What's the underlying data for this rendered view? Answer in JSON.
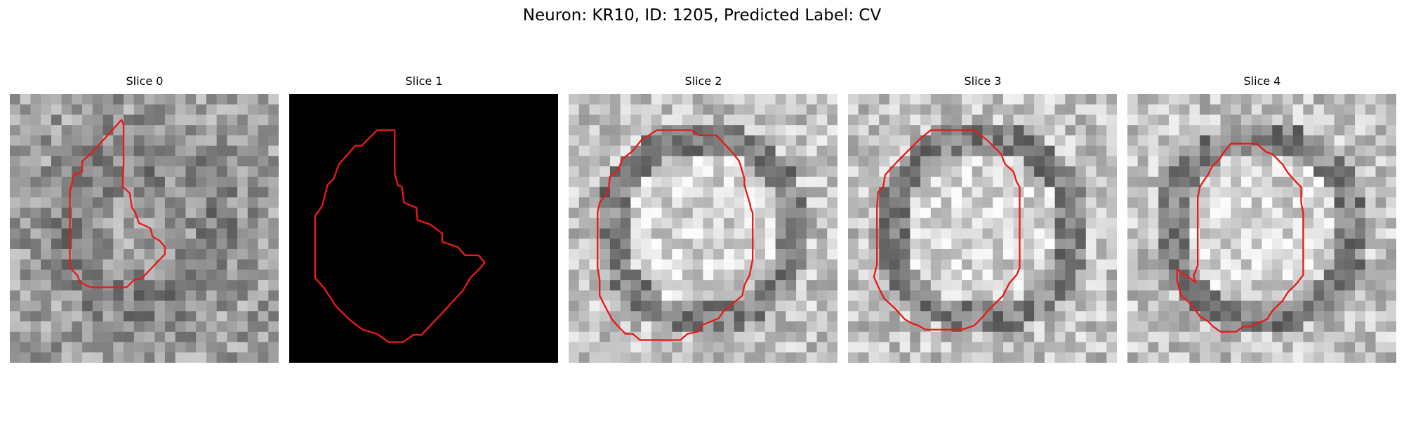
{
  "figure": {
    "title": "Neuron: KR10, ID: 1205, Predicted Label: CV",
    "slices": [
      {
        "label": "Slice 0",
        "pattern": "off-ring",
        "contour_color": "#e81a1a",
        "contour": [
          [
            10.8,
            2.5
          ],
          [
            9.0,
            4.5
          ],
          [
            7.8,
            5.8
          ],
          [
            7.0,
            6.5
          ],
          [
            7.0,
            7.5
          ],
          [
            6.2,
            7.8
          ],
          [
            5.8,
            9.5
          ],
          [
            5.8,
            14.5
          ],
          [
            5.8,
            16.8
          ],
          [
            6.5,
            17.5
          ],
          [
            6.8,
            18.2
          ],
          [
            7.8,
            18.7
          ],
          [
            9.5,
            18.7
          ],
          [
            11.3,
            18.7
          ],
          [
            12.0,
            18.0
          ],
          [
            12.8,
            17.8
          ],
          [
            14.5,
            16.0
          ],
          [
            15.0,
            15.5
          ],
          [
            15.0,
            14.8
          ],
          [
            14.5,
            14.2
          ],
          [
            13.8,
            13.8
          ],
          [
            13.6,
            13.0
          ],
          [
            13.0,
            12.7
          ],
          [
            12.5,
            12.5
          ],
          [
            12.1,
            11.4
          ],
          [
            11.8,
            11.0
          ],
          [
            11.6,
            9.6
          ],
          [
            11.2,
            9.2
          ],
          [
            10.9,
            9.0
          ],
          [
            11.0,
            6.8
          ],
          [
            11.0,
            3.0
          ]
        ]
      },
      {
        "label": "Slice 1",
        "pattern": "black",
        "contour_color": "#e81a1a",
        "contour": [
          [
            8.5,
            3.5
          ],
          [
            7.0,
            5.0
          ],
          [
            6.4,
            5.0
          ],
          [
            4.8,
            6.8
          ],
          [
            4.3,
            8.2
          ],
          [
            3.7,
            8.8
          ],
          [
            3.4,
            10.0
          ],
          [
            3.2,
            10.8
          ],
          [
            2.5,
            11.8
          ],
          [
            2.5,
            17.8
          ],
          [
            3.4,
            18.8
          ],
          [
            4.5,
            20.5
          ],
          [
            5.8,
            21.8
          ],
          [
            7.1,
            22.8
          ],
          [
            8.5,
            23.2
          ],
          [
            9.6,
            24.0
          ],
          [
            11.0,
            24.0
          ],
          [
            12.0,
            23.3
          ],
          [
            12.8,
            23.3
          ],
          [
            14.5,
            21.5
          ],
          [
            15.6,
            20.3
          ],
          [
            16.8,
            19.0
          ],
          [
            17.5,
            17.8
          ],
          [
            18.5,
            16.8
          ],
          [
            18.9,
            16.3
          ],
          [
            18.3,
            15.6
          ],
          [
            17.0,
            15.6
          ],
          [
            16.3,
            14.8
          ],
          [
            14.8,
            14.3
          ],
          [
            14.8,
            13.5
          ],
          [
            13.6,
            12.6
          ],
          [
            12.4,
            12.2
          ],
          [
            12.3,
            11.0
          ],
          [
            11.1,
            10.5
          ],
          [
            10.9,
            9.0
          ],
          [
            10.5,
            8.8
          ],
          [
            10.2,
            7.7
          ],
          [
            10.2,
            3.5
          ]
        ]
      },
      {
        "label": "Slice 2",
        "pattern": "ring",
        "contour_color": "#e81a1a",
        "contour": [
          [
            8.5,
            3.5
          ],
          [
            11.9,
            3.5
          ],
          [
            12.6,
            4.0
          ],
          [
            14.3,
            4.0
          ],
          [
            15.7,
            5.5
          ],
          [
            16.5,
            6.5
          ],
          [
            16.8,
            7.5
          ],
          [
            17.0,
            8.2
          ],
          [
            17.0,
            8.8
          ],
          [
            17.2,
            9.5
          ],
          [
            17.5,
            10.5
          ],
          [
            17.6,
            11.0
          ],
          [
            17.8,
            11.5
          ],
          [
            17.8,
            13.5
          ],
          [
            17.8,
            16.0
          ],
          [
            17.5,
            17.5
          ],
          [
            17.0,
            18.5
          ],
          [
            16.8,
            19.5
          ],
          [
            16.2,
            20.0
          ],
          [
            15.0,
            21.0
          ],
          [
            14.5,
            21.7
          ],
          [
            13.8,
            22.0
          ],
          [
            13.0,
            22.3
          ],
          [
            12.5,
            23.0
          ],
          [
            11.5,
            23.2
          ],
          [
            10.8,
            23.8
          ],
          [
            6.9,
            23.8
          ],
          [
            6.2,
            23.2
          ],
          [
            5.5,
            23.2
          ],
          [
            4.8,
            22.5
          ],
          [
            4.2,
            21.8
          ],
          [
            3.5,
            20.5
          ],
          [
            3.0,
            19.5
          ],
          [
            3.0,
            18.0
          ],
          [
            2.8,
            16.8
          ],
          [
            2.8,
            15.5
          ],
          [
            2.8,
            13.0
          ],
          [
            2.8,
            11.5
          ],
          [
            3.0,
            10.5
          ],
          [
            3.8,
            9.5
          ],
          [
            4.0,
            8.0
          ],
          [
            4.8,
            7.3
          ],
          [
            5.2,
            6.3
          ],
          [
            6.2,
            5.5
          ],
          [
            7.0,
            4.5
          ]
        ]
      },
      {
        "label": "Slice 3",
        "pattern": "ring",
        "contour_color": "#e81a1a",
        "contour": [
          [
            8.0,
            3.5
          ],
          [
            12.2,
            3.5
          ],
          [
            13.5,
            4.5
          ],
          [
            14.8,
            5.8
          ],
          [
            15.2,
            6.8
          ],
          [
            16.0,
            7.5
          ],
          [
            16.3,
            8.5
          ],
          [
            16.6,
            9.0
          ],
          [
            16.6,
            11.0
          ],
          [
            16.6,
            16.8
          ],
          [
            16.3,
            17.5
          ],
          [
            15.6,
            18.3
          ],
          [
            15.0,
            19.5
          ],
          [
            14.5,
            20.0
          ],
          [
            13.5,
            21.0
          ],
          [
            13.0,
            21.6
          ],
          [
            12.2,
            22.4
          ],
          [
            11.0,
            22.8
          ],
          [
            7.5,
            22.8
          ],
          [
            6.8,
            22.4
          ],
          [
            6.2,
            22.2
          ],
          [
            5.5,
            21.8
          ],
          [
            4.5,
            20.7
          ],
          [
            3.5,
            19.8
          ],
          [
            3.0,
            18.8
          ],
          [
            2.5,
            17.7
          ],
          [
            2.8,
            16.5
          ],
          [
            2.8,
            15.5
          ],
          [
            2.8,
            11.0
          ],
          [
            2.9,
            9.5
          ],
          [
            3.4,
            9.0
          ],
          [
            3.6,
            7.8
          ],
          [
            4.8,
            6.5
          ],
          [
            6.0,
            5.3
          ],
          [
            7.0,
            4.3
          ]
        ]
      },
      {
        "label": "Slice 4",
        "pattern": "ring",
        "contour_color": "#e81a1a",
        "contour": [
          [
            10.0,
            4.8
          ],
          [
            12.5,
            4.8
          ],
          [
            13.4,
            5.6
          ],
          [
            14.0,
            5.8
          ],
          [
            15.0,
            6.8
          ],
          [
            15.5,
            7.6
          ],
          [
            16.3,
            8.5
          ],
          [
            16.8,
            9.0
          ],
          [
            16.8,
            10.5
          ],
          [
            17.0,
            11.5
          ],
          [
            17.0,
            12.5
          ],
          [
            17.0,
            17.5
          ],
          [
            16.4,
            18.3
          ],
          [
            15.5,
            19.2
          ],
          [
            15.0,
            20.0
          ],
          [
            14.0,
            21.0
          ],
          [
            13.5,
            21.8
          ],
          [
            12.5,
            22.2
          ],
          [
            11.8,
            22.5
          ],
          [
            11.2,
            22.5
          ],
          [
            10.5,
            23.0
          ],
          [
            9.0,
            23.0
          ],
          [
            8.3,
            22.5
          ],
          [
            7.8,
            22.0
          ],
          [
            7.0,
            21.5
          ],
          [
            6.5,
            20.8
          ],
          [
            6.0,
            20.2
          ],
          [
            5.2,
            19.5
          ],
          [
            5.0,
            18.8
          ],
          [
            4.8,
            18.0
          ],
          [
            4.8,
            17.0
          ],
          [
            6.6,
            18.2
          ],
          [
            6.4,
            17.6
          ],
          [
            6.8,
            16.6
          ],
          [
            6.8,
            11.5
          ],
          [
            6.8,
            10.0
          ],
          [
            7.0,
            9.0
          ],
          [
            7.5,
            8.2
          ],
          [
            7.8,
            7.8
          ],
          [
            8.2,
            7.0
          ],
          [
            9.0,
            6.2
          ],
          [
            9.2,
            5.8
          ]
        ]
      }
    ]
  }
}
